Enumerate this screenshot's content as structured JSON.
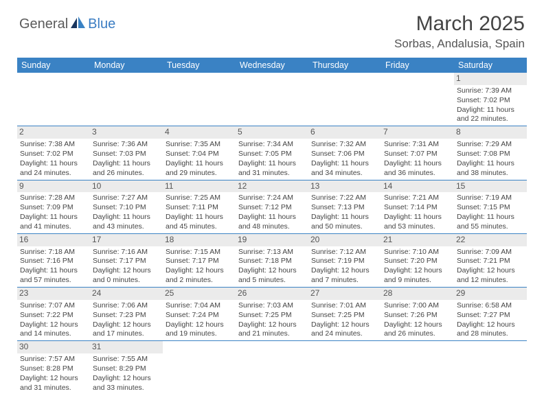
{
  "brand": {
    "part1": "General",
    "part2": "Blue"
  },
  "title": "March 2025",
  "location": "Sorbas, Andalusia, Spain",
  "colors": {
    "header_bg": "#3a82c4",
    "header_text": "#ffffff",
    "border": "#3a82c4",
    "daynum_bg": "#ebebeb",
    "text": "#444444",
    "brand_gray": "#5a5a5a",
    "brand_blue": "#3a7cc2"
  },
  "weekdays": [
    "Sunday",
    "Monday",
    "Tuesday",
    "Wednesday",
    "Thursday",
    "Friday",
    "Saturday"
  ],
  "weeks": [
    [
      null,
      null,
      null,
      null,
      null,
      null,
      {
        "n": "1",
        "sr": "7:39 AM",
        "ss": "7:02 PM",
        "dl": "11 hours and 22 minutes."
      }
    ],
    [
      {
        "n": "2",
        "sr": "7:38 AM",
        "ss": "7:02 PM",
        "dl": "11 hours and 24 minutes."
      },
      {
        "n": "3",
        "sr": "7:36 AM",
        "ss": "7:03 PM",
        "dl": "11 hours and 26 minutes."
      },
      {
        "n": "4",
        "sr": "7:35 AM",
        "ss": "7:04 PM",
        "dl": "11 hours and 29 minutes."
      },
      {
        "n": "5",
        "sr": "7:34 AM",
        "ss": "7:05 PM",
        "dl": "11 hours and 31 minutes."
      },
      {
        "n": "6",
        "sr": "7:32 AM",
        "ss": "7:06 PM",
        "dl": "11 hours and 34 minutes."
      },
      {
        "n": "7",
        "sr": "7:31 AM",
        "ss": "7:07 PM",
        "dl": "11 hours and 36 minutes."
      },
      {
        "n": "8",
        "sr": "7:29 AM",
        "ss": "7:08 PM",
        "dl": "11 hours and 38 minutes."
      }
    ],
    [
      {
        "n": "9",
        "sr": "7:28 AM",
        "ss": "7:09 PM",
        "dl": "11 hours and 41 minutes."
      },
      {
        "n": "10",
        "sr": "7:27 AM",
        "ss": "7:10 PM",
        "dl": "11 hours and 43 minutes."
      },
      {
        "n": "11",
        "sr": "7:25 AM",
        "ss": "7:11 PM",
        "dl": "11 hours and 45 minutes."
      },
      {
        "n": "12",
        "sr": "7:24 AM",
        "ss": "7:12 PM",
        "dl": "11 hours and 48 minutes."
      },
      {
        "n": "13",
        "sr": "7:22 AM",
        "ss": "7:13 PM",
        "dl": "11 hours and 50 minutes."
      },
      {
        "n": "14",
        "sr": "7:21 AM",
        "ss": "7:14 PM",
        "dl": "11 hours and 53 minutes."
      },
      {
        "n": "15",
        "sr": "7:19 AM",
        "ss": "7:15 PM",
        "dl": "11 hours and 55 minutes."
      }
    ],
    [
      {
        "n": "16",
        "sr": "7:18 AM",
        "ss": "7:16 PM",
        "dl": "11 hours and 57 minutes."
      },
      {
        "n": "17",
        "sr": "7:16 AM",
        "ss": "7:17 PM",
        "dl": "12 hours and 0 minutes."
      },
      {
        "n": "18",
        "sr": "7:15 AM",
        "ss": "7:17 PM",
        "dl": "12 hours and 2 minutes."
      },
      {
        "n": "19",
        "sr": "7:13 AM",
        "ss": "7:18 PM",
        "dl": "12 hours and 5 minutes."
      },
      {
        "n": "20",
        "sr": "7:12 AM",
        "ss": "7:19 PM",
        "dl": "12 hours and 7 minutes."
      },
      {
        "n": "21",
        "sr": "7:10 AM",
        "ss": "7:20 PM",
        "dl": "12 hours and 9 minutes."
      },
      {
        "n": "22",
        "sr": "7:09 AM",
        "ss": "7:21 PM",
        "dl": "12 hours and 12 minutes."
      }
    ],
    [
      {
        "n": "23",
        "sr": "7:07 AM",
        "ss": "7:22 PM",
        "dl": "12 hours and 14 minutes."
      },
      {
        "n": "24",
        "sr": "7:06 AM",
        "ss": "7:23 PM",
        "dl": "12 hours and 17 minutes."
      },
      {
        "n": "25",
        "sr": "7:04 AM",
        "ss": "7:24 PM",
        "dl": "12 hours and 19 minutes."
      },
      {
        "n": "26",
        "sr": "7:03 AM",
        "ss": "7:25 PM",
        "dl": "12 hours and 21 minutes."
      },
      {
        "n": "27",
        "sr": "7:01 AM",
        "ss": "7:25 PM",
        "dl": "12 hours and 24 minutes."
      },
      {
        "n": "28",
        "sr": "7:00 AM",
        "ss": "7:26 PM",
        "dl": "12 hours and 26 minutes."
      },
      {
        "n": "29",
        "sr": "6:58 AM",
        "ss": "7:27 PM",
        "dl": "12 hours and 28 minutes."
      }
    ],
    [
      {
        "n": "30",
        "sr": "7:57 AM",
        "ss": "8:28 PM",
        "dl": "12 hours and 31 minutes."
      },
      {
        "n": "31",
        "sr": "7:55 AM",
        "ss": "8:29 PM",
        "dl": "12 hours and 33 minutes."
      },
      null,
      null,
      null,
      null,
      null
    ]
  ],
  "labels": {
    "sunrise": "Sunrise:",
    "sunset": "Sunset:",
    "daylight": "Daylight:"
  }
}
